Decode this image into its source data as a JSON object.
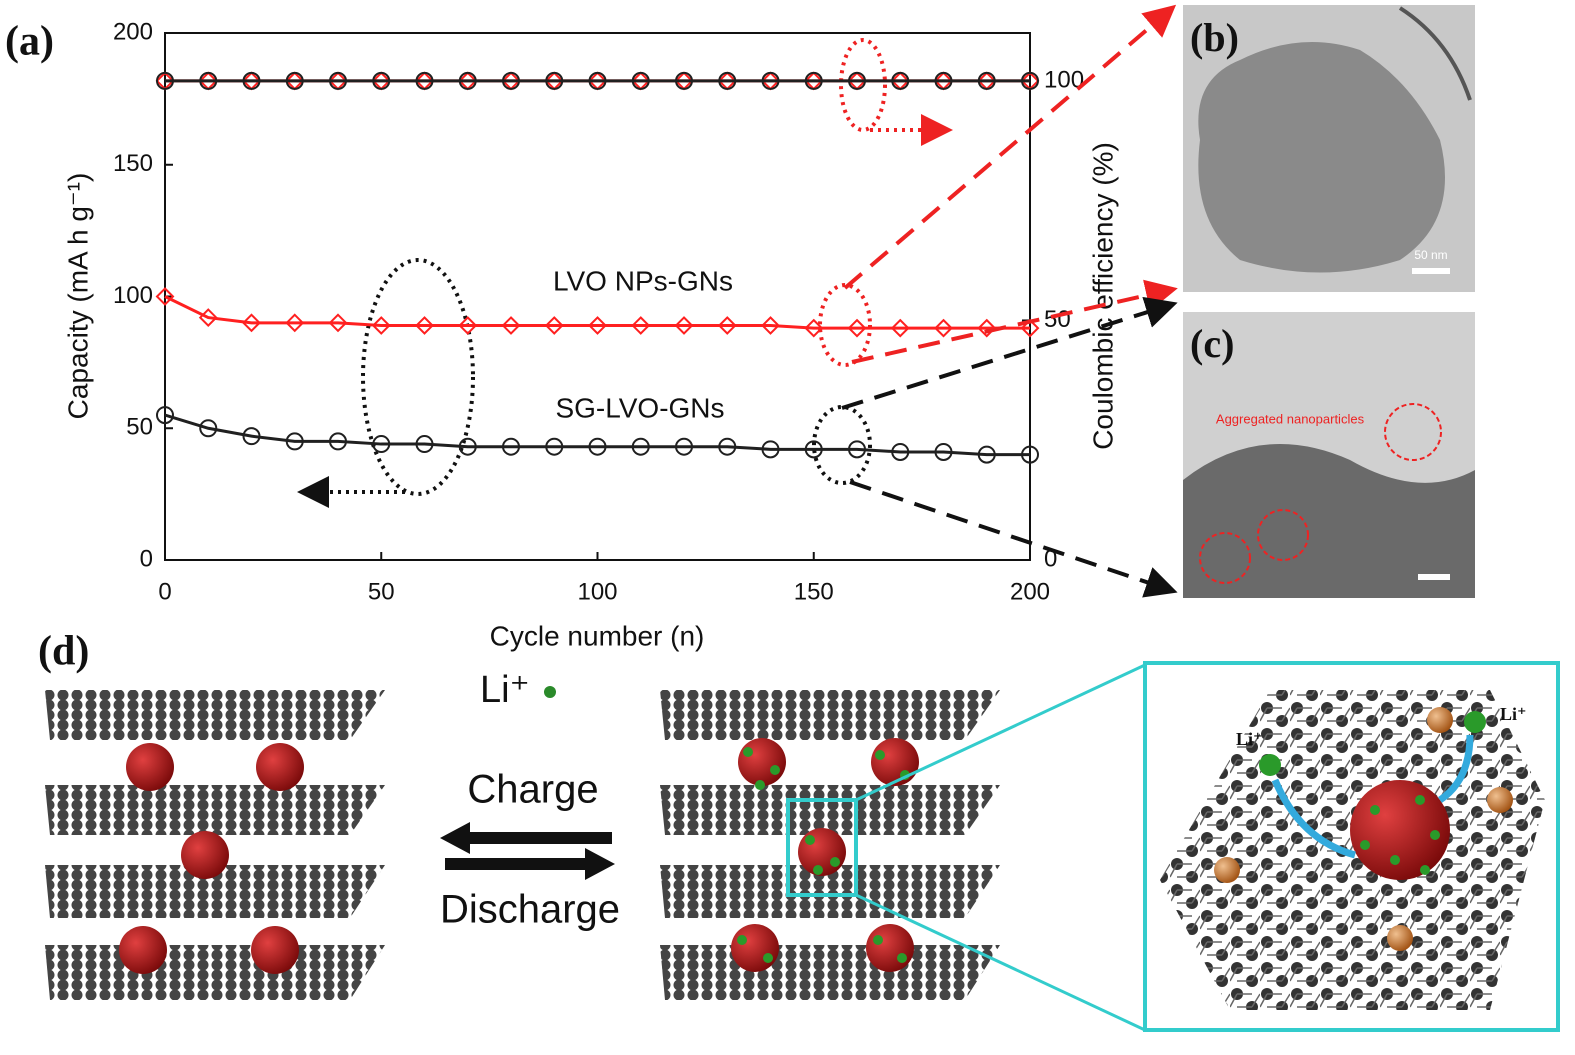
{
  "chart_data": {
    "type": "line",
    "panel_label": "(a)",
    "xlabel": "Cycle number (n)",
    "ylabel": "Capacity (mA h g⁻¹)",
    "y2label": "Coulombic efficiency (%)",
    "x": [
      0,
      10,
      20,
      30,
      40,
      50,
      60,
      70,
      80,
      90,
      100,
      110,
      120,
      130,
      140,
      150,
      160,
      170,
      180,
      190,
      200
    ],
    "series": [
      {
        "name": "LVO NPs-GNs",
        "color": "#ff2020",
        "marker": "diamond",
        "values": [
          100,
          92,
          90,
          90,
          90,
          89,
          89,
          89,
          89,
          89,
          89,
          89,
          89,
          89,
          89,
          88,
          88,
          88,
          88,
          88,
          88
        ]
      },
      {
        "name": "SG-LVO-GNs",
        "color": "#202020",
        "marker": "circle",
        "values": [
          55,
          50,
          47,
          45,
          45,
          44,
          44,
          43,
          43,
          43,
          43,
          43,
          43,
          43,
          42,
          42,
          42,
          41,
          41,
          40,
          40
        ]
      },
      {
        "color": "#ff2020",
        "marker": "diamond",
        "axis": "y2",
        "values": [
          100,
          100,
          100,
          100,
          100,
          100,
          100,
          100,
          100,
          100,
          100,
          100,
          100,
          100,
          100,
          100,
          100,
          100,
          100,
          100,
          100
        ]
      },
      {
        "color": "#202020",
        "marker": "circle",
        "axis": "y2",
        "values": [
          100,
          100,
          100,
          100,
          100,
          100,
          100,
          100,
          100,
          100,
          100,
          100,
          100,
          100,
          100,
          100,
          100,
          100,
          100,
          100,
          100
        ]
      }
    ],
    "xlim": [
      0,
      200
    ],
    "xticks": [
      0,
      50,
      100,
      150,
      200
    ],
    "ylim": [
      0,
      200
    ],
    "yticks": [
      0,
      50,
      100,
      150,
      200
    ],
    "y2lim": [
      0,
      110
    ],
    "y2ticks": [
      0,
      50,
      100
    ]
  },
  "panel_b": {
    "label": "(b)",
    "scale_bar": "50 nm"
  },
  "panel_c": {
    "label": "(c)",
    "annotation": "Aggregated nanoparticles"
  },
  "panel_d": {
    "label": "(d)",
    "ion": "Li⁺",
    "charge": "Charge",
    "discharge": "Discharge",
    "inset_ion_1": "Li⁺",
    "inset_ion_2": "Li⁺"
  }
}
